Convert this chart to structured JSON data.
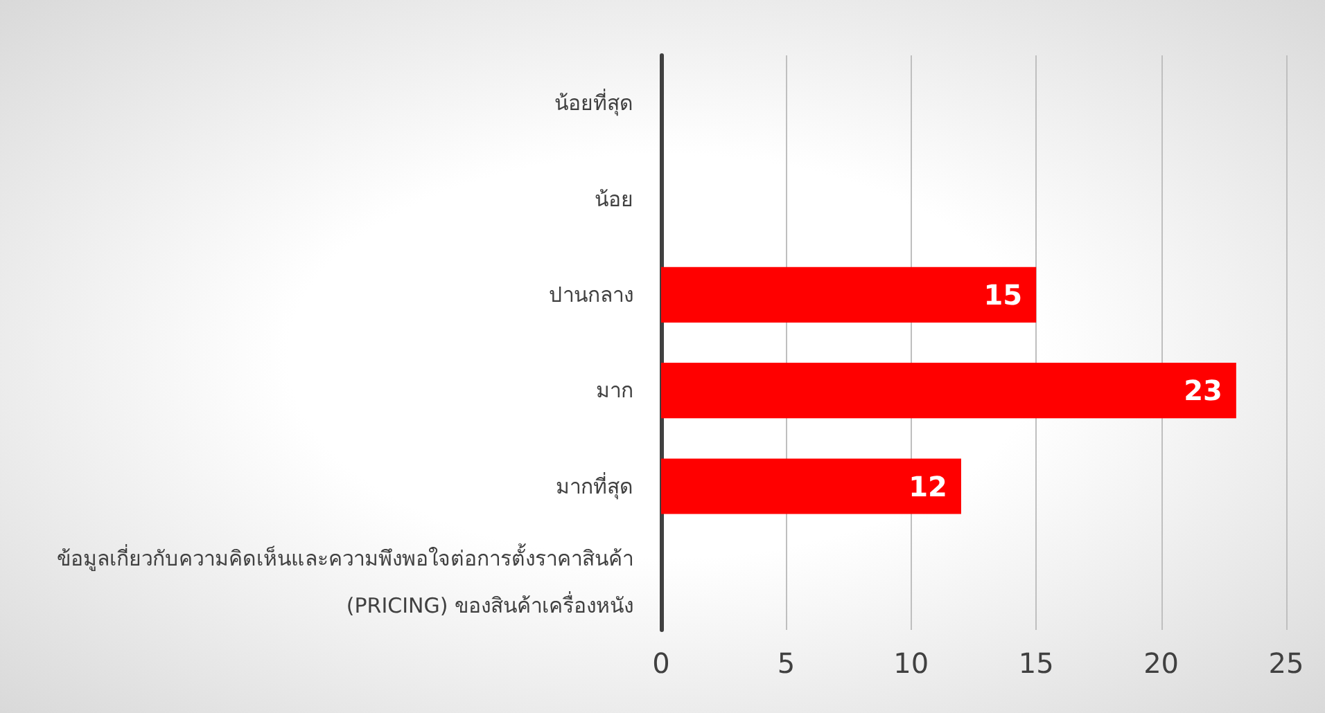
{
  "chart_data": {
    "type": "bar",
    "orientation": "horizontal",
    "categories": [
      "น้อยที่สุด",
      "น้อย",
      "ปานกลาง",
      "มาก",
      "มากที่สุด",
      "ข้อมูลเกี่ยวกับความคิดเห็นและความพึงพอใจต่อการตั้งราคาสินค้า\n(PRICING) ของสินค้าเครื่องหนัง"
    ],
    "values": [
      null,
      null,
      15,
      23,
      12,
      null
    ],
    "color": "#ff0000",
    "xlim": [
      0,
      25
    ],
    "xticks": [
      0,
      5,
      10,
      15,
      20,
      25
    ],
    "grid": "x",
    "data_labels": true
  }
}
